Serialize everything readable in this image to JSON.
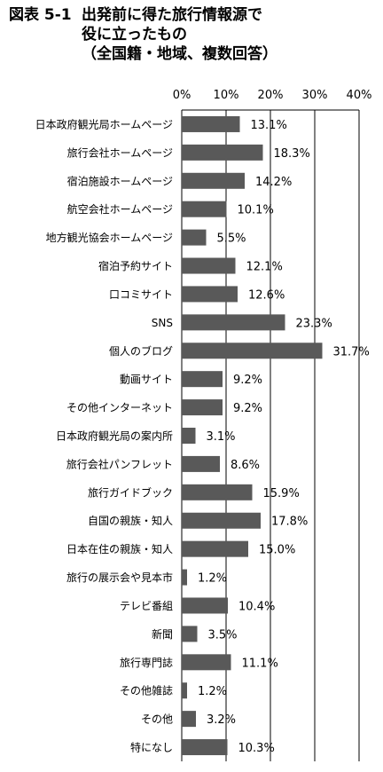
{
  "figure_label": "図表 5-1",
  "title_lines": [
    "出発前に得た旅行情報源で",
    "役に立ったもの",
    "（全国籍・地域、複数回答）"
  ],
  "chart_data": {
    "type": "bar",
    "orientation": "horizontal",
    "title": "出発前に得た旅行情報源で役に立ったもの（全国籍・地域、複数回答）",
    "categories": [
      "日本政府観光局ホームページ",
      "旅行会社ホームページ",
      "宿泊施設ホームページ",
      "航空会社ホームページ",
      "地方観光協会ホームページ",
      "宿泊予約サイト",
      "口コミサイト",
      "SNS",
      "個人のブログ",
      "動画サイト",
      "その他インターネット",
      "日本政府観光局の案内所",
      "旅行会社パンフレット",
      "旅行ガイドブック",
      "自国の親族・知人",
      "日本在住の親族・知人",
      "旅行の展示会や見本市",
      "テレビ番組",
      "新聞",
      "旅行専門誌",
      "その他雑誌",
      "その他",
      "特になし"
    ],
    "values": [
      13.1,
      18.3,
      14.2,
      10.1,
      5.5,
      12.1,
      12.6,
      23.3,
      31.7,
      9.2,
      9.2,
      3.1,
      8.6,
      15.9,
      17.8,
      15.0,
      1.2,
      10.4,
      3.5,
      11.1,
      1.2,
      3.2,
      10.3
    ],
    "data_labels": [
      "13.1%",
      "18.3%",
      "14.2%",
      "10.1%",
      "5.5%",
      "12.1%",
      "12.6%",
      "23.3%",
      "31.7%",
      "9.2%",
      "9.2%",
      "3.1%",
      "8.6%",
      "15.9%",
      "17.8%",
      "15.0%",
      "1.2%",
      "10.4%",
      "3.5%",
      "11.1%",
      "1.2%",
      "3.2%",
      "10.3%"
    ],
    "x_ticks": [
      "0%",
      "10%",
      "20%",
      "30%",
      "40%"
    ],
    "xlim": [
      0,
      40
    ],
    "grid": true,
    "legend": "none",
    "bar_color": "#595959"
  }
}
